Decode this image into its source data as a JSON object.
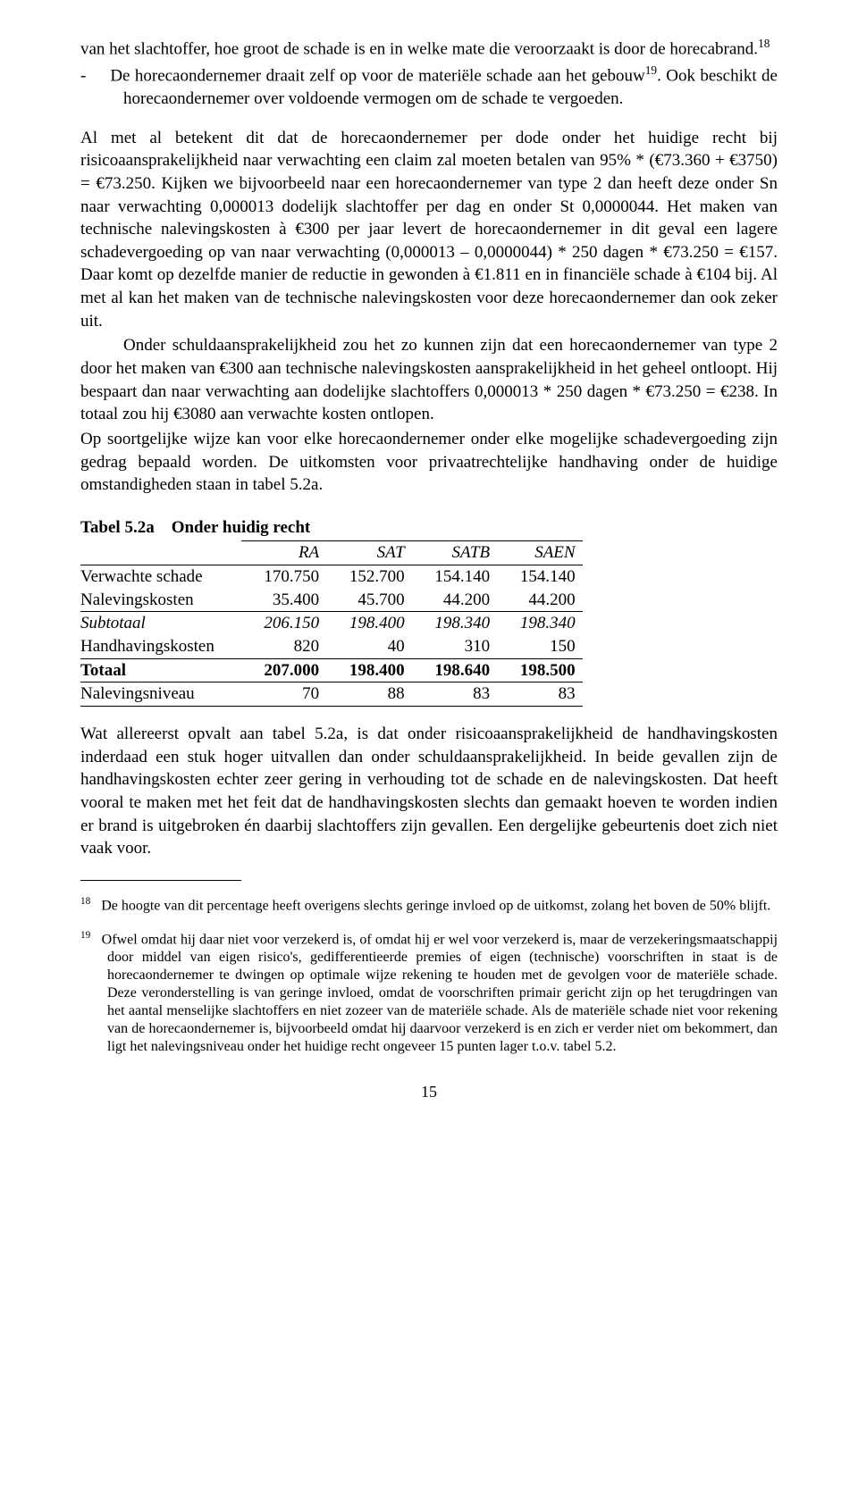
{
  "p1": "van het slachtoffer, hoe groot de schade is en in welke mate die veroorzaakt is door de horecabrand.",
  "sup1": "18",
  "p2a": "-",
  "p2b": "De horecaondernemer draait zelf op voor de materiële schade aan het gebouw",
  "sup2": "19",
  "p2c": ". Ook beschikt de horecaondernemer over voldoende vermogen om de schade te vergoeden.",
  "p3": "Al met al betekent dit dat de horecaondernemer per dode onder het huidige recht bij risicoaansprakelijkheid naar verwachting een claim zal moeten betalen van 95% * (€73.360 + €3750) = €73.250. Kijken we bijvoorbeeld naar een horecaondernemer van type 2 dan heeft deze onder Sn naar verwachting 0,000013 dodelijk slachtoffer per dag en onder St 0,0000044. Het maken van technische nalevingskosten à €300 per jaar levert de horecaondernemer in dit geval een lagere schadevergoeding op van naar verwachting (0,000013 – 0,0000044) * 250 dagen * €73.250 = €157. Daar komt op dezelfde manier de reductie in gewonden à €1.811 en in financiële schade à €104 bij. Al met al kan het maken van de technische nalevingskosten voor deze horecaondernemer dan ook zeker uit.",
  "p4": "Onder schuldaansprakelijkheid zou het zo kunnen zijn dat een horecaondernemer van type 2 door het maken van €300 aan technische nalevingskosten aansprakelijkheid in het geheel ontloopt. Hij bespaart dan naar verwachting aan dodelijke slachtoffers 0,000013 * 250 dagen * €73.250 = €238. In totaal zou hij €3080 aan verwachte kosten ontlopen.",
  "p5": "Op soortgelijke wijze kan voor elke horecaondernemer onder elke mogelijke schadevergoeding zijn gedrag bepaald worden. De uitkomsten voor privaatrechtelijke handhaving onder de huidige omstandigheden staan in tabel 5.2a.",
  "table": {
    "title": "Tabel 5.2a Onder huidig recht",
    "columns": [
      "",
      "RA",
      "SAT",
      "SATB",
      "SAEN"
    ],
    "rows": [
      {
        "label": "Verwachte schade",
        "cells": [
          "170.750",
          "152.700",
          "154.140",
          "154.140"
        ],
        "style": ""
      },
      {
        "label": "Nalevingskosten",
        "cells": [
          "35.400",
          "45.700",
          "44.200",
          "44.200"
        ],
        "style": "border-bottom"
      },
      {
        "label": "Subtotaal",
        "cells": [
          "206.150",
          "198.400",
          "198.340",
          "198.340"
        ],
        "style": "italic"
      },
      {
        "label": "Handhavingskosten",
        "cells": [
          "820",
          "40",
          "310",
          "150"
        ],
        "style": "border-bottom"
      },
      {
        "label": "Totaal",
        "cells": [
          "207.000",
          "198.400",
          "198.640",
          "198.500"
        ],
        "style": "bold border-bottom"
      },
      {
        "label": "Nalevingsniveau",
        "cells": [
          "70",
          "88",
          "83",
          "83"
        ],
        "style": "border-bottom"
      }
    ]
  },
  "p6": "Wat allereerst opvalt aan tabel 5.2a, is dat onder risicoaansprakelijkheid de handhavingskosten inderdaad een stuk hoger uitvallen dan onder schuldaansprakelijkheid. In beide gevallen zijn de handhavingskosten echter zeer gering in verhouding tot de schade en de nalevingskosten. Dat heeft vooral te maken met het feit dat de handhavingskosten slechts dan gemaakt hoeven te worden indien er brand is uitgebroken én daarbij slachtoffers zijn gevallen. Een dergelijke gebeurtenis doet zich niet vaak voor.",
  "fn18n": "18",
  "fn18": "De hoogte van dit percentage heeft overigens slechts geringe invloed op de uitkomst, zolang het boven de 50% blijft.",
  "fn19n": "19",
  "fn19": "Ofwel omdat hij daar niet voor verzekerd is, of omdat hij er wel voor verzekerd is, maar de verzekeringsmaatschappij door middel van eigen risico's, gedifferentieerde premies of eigen (technische) voorschriften in staat is de horecaondernemer te dwingen op optimale wijze rekening te houden met de gevolgen voor de materiële schade. Deze veronderstelling is van geringe invloed, omdat de voorschriften primair gericht zijn op het terugdringen van het aantal menselijke slachtoffers en niet zozeer van de materiële schade. Als de materiële schade niet voor rekening van de horecaondernemer is, bijvoorbeeld omdat hij daarvoor verzekerd is en zich er verder niet om bekommert, dan ligt het nalevingsniveau onder het huidige recht ongeveer 15 punten lager t.o.v. tabel 5.2.",
  "pageNumber": "15"
}
